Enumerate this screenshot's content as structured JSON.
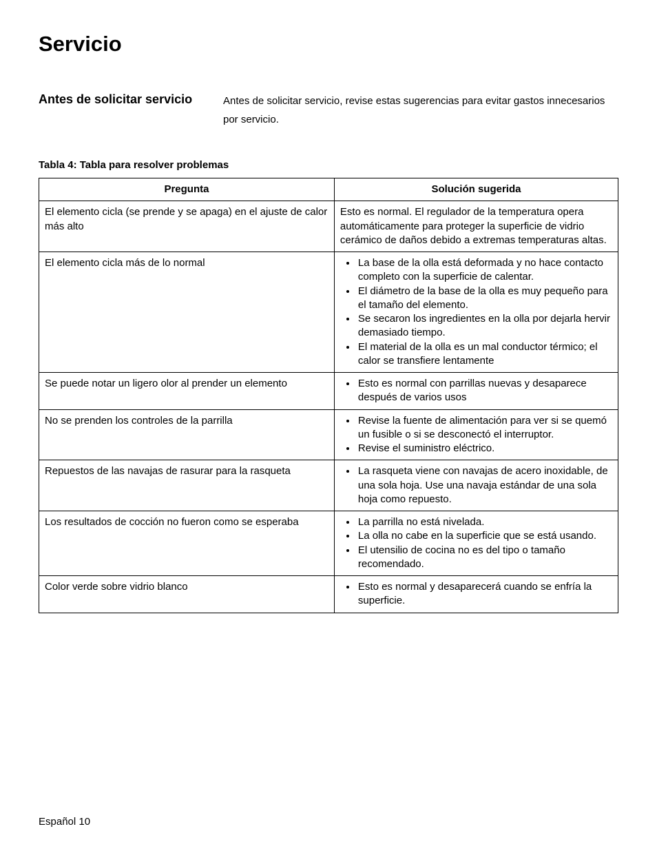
{
  "page": {
    "title": "Servicio",
    "footer": "Español 10",
    "background_color": "#ffffff",
    "text_color": "#000000"
  },
  "intro": {
    "heading": "Antes de solicitar servicio",
    "text": "Antes de solicitar servicio, revise estas sugerencias para evitar gastos innecesarios por servicio."
  },
  "table": {
    "caption": "Tabla 4: Tabla para resolver problemas",
    "border_color": "#000000",
    "columns": [
      "Pregunta",
      "Solución sugerida"
    ],
    "column_widths_pct": [
      51,
      49
    ],
    "font_size_pt": 11,
    "rows": [
      {
        "question": "El elemento cicla (se prende y se apaga) en el ajuste de calor más alto",
        "solution_type": "text",
        "solution_text": "Esto es normal. El regulador de la temperatura opera automáticamente para proteger la superficie de vidrio cerámico de daños debido a extremas temperaturas altas."
      },
      {
        "question": "El elemento cicla más de lo normal",
        "solution_type": "list",
        "solution_items": [
          "La base de la olla está deformada y no hace contacto completo con la superficie de calentar.",
          "El diámetro de la base de la olla es muy pequeño para el tamaño del elemento.",
          "Se secaron los ingredientes en la olla por dejarla hervir demasiado tiempo.",
          "El material de la olla es un mal conductor térmico; el calor se transfiere lentamente"
        ]
      },
      {
        "question": "Se puede notar un ligero olor al prender un elemento",
        "solution_type": "list",
        "solution_items": [
          "Esto es normal con parrillas nuevas y desaparece después de varios usos"
        ]
      },
      {
        "question": "No se prenden los controles de la parrilla",
        "solution_type": "list",
        "solution_items": [
          "Revise la fuente de alimentación para ver si se quemó un fusible o si se desconectó el interruptor.",
          "Revise el suministro eléctrico."
        ]
      },
      {
        "question": "Repuestos de las navajas de rasurar para la rasqueta",
        "solution_type": "list",
        "solution_items": [
          "La rasqueta viene con navajas de acero inoxidable, de una sola hoja. Use una navaja estándar de una sola hoja como repuesto."
        ]
      },
      {
        "question": "Los resultados de cocción no fueron como se esperaba",
        "solution_type": "list",
        "solution_items": [
          "La parrilla no está nivelada.",
          "La olla no cabe en la superficie que se está usando.",
          "El utensilio de cocina no es del tipo o tamaño recomendado."
        ]
      },
      {
        "question": "Color verde sobre vidrio blanco",
        "solution_type": "list",
        "solution_items": [
          "Esto es normal y desaparecerá cuando se enfría la superficie."
        ]
      }
    ]
  }
}
